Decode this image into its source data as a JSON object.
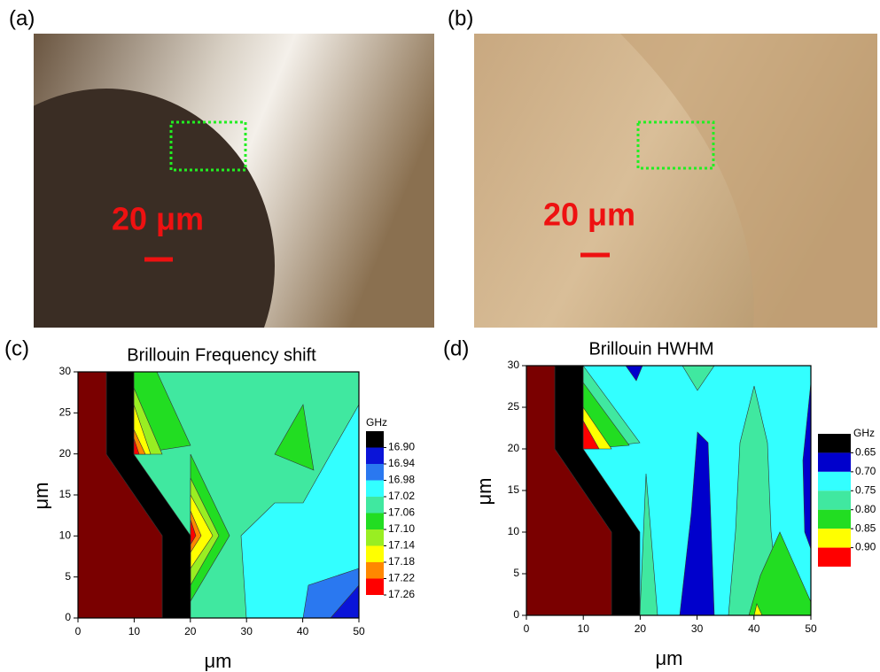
{
  "panels": [
    {
      "label": "(a)",
      "scale_bar": "20 μm"
    },
    {
      "label": "(b)",
      "scale_bar": "20 μm"
    }
  ],
  "chart_data": [
    {
      "type": "contour",
      "panel_label": "(c)",
      "title": "Brillouin Frequency shift",
      "xlabel": "μm",
      "ylabel": "μm",
      "xlim": [
        0,
        50
      ],
      "ylim": [
        0,
        30
      ],
      "xticks": [
        0,
        10,
        20,
        30,
        40,
        50
      ],
      "yticks": [
        0,
        5,
        10,
        15,
        20,
        25,
        30
      ],
      "colorbar": {
        "title": "GHz",
        "levels": [
          {
            "value": 16.9,
            "label": "16.90"
          },
          16.94,
          16.98,
          17.02,
          17.06,
          {
            "value": 17.1,
            "label": "17.10"
          },
          17.14,
          17.18,
          17.22,
          17.26
        ],
        "colors": [
          "#000000",
          "#0a14d8",
          "#2a78f0",
          "#33ffff",
          "#40e8a0",
          "#22dd22",
          "#99ee22",
          "#ffff00",
          "#ff8800",
          "#ff0000"
        ]
      }
    },
    {
      "type": "contour",
      "panel_label": "(d)",
      "title": "Brillouin HWHM",
      "xlabel": "μm",
      "ylabel": "μm",
      "xlim": [
        0,
        50
      ],
      "ylim": [
        0,
        30
      ],
      "xticks": [
        0,
        10,
        20,
        30,
        40,
        50
      ],
      "yticks": [
        0,
        5,
        10,
        15,
        20,
        25,
        30
      ],
      "colorbar": {
        "title": "GHz",
        "levels": [
          0.65,
          {
            "value": 0.7,
            "label": "0.70"
          },
          0.75,
          {
            "value": 0.8,
            "label": "0.80"
          },
          0.85,
          {
            "value": 0.9,
            "label": "0.90"
          }
        ],
        "colors": [
          "#000000",
          "#0000cc",
          "#33ffff",
          "#40e8a0",
          "#22dd22",
          "#ffff00",
          "#ff0000"
        ]
      }
    }
  ]
}
